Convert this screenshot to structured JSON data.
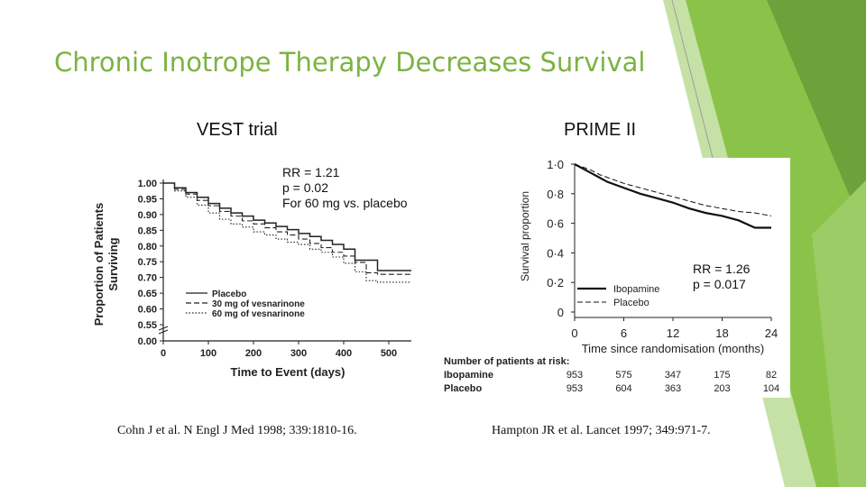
{
  "slide": {
    "title": "Chronic Inotrope Therapy Decreases Survival",
    "left_heading": "VEST trial",
    "right_heading": "PRIME II",
    "left_stats": [
      "RR = 1.21",
      "p = 0.02",
      "For 60 mg vs. placebo"
    ],
    "right_stats": [
      "RR = 1.26",
      "p = 0.017"
    ],
    "left_citation": "Cohn J et al. N Engl J Med 1998; 339:1810-16.",
    "right_citation": "Hampton JR et al. Lancet 1997; 349:971-7.",
    "accent_color": "#8bc34a"
  },
  "chart_data": [
    {
      "type": "line",
      "xlabel": "Time to Event (days)",
      "ylabel": "Proportion of Patients Surviving",
      "xlim": [
        0,
        550
      ],
      "ylim": [
        0.55,
        1.0
      ],
      "y_axis_break": true,
      "x_ticks": [
        "0",
        "100",
        "200",
        "300",
        "400",
        "500"
      ],
      "y_ticks": [
        "1.00",
        "0.95",
        "0.90",
        "0.85",
        "0.80",
        "0.75",
        "0.70",
        "0.65",
        "0.60",
        "0.55",
        "0.00"
      ],
      "legend": "bottom-left",
      "series": [
        {
          "name": "Placebo",
          "style": "solid",
          "x": [
            0,
            25,
            50,
            75,
            100,
            125,
            150,
            175,
            200,
            225,
            250,
            275,
            300,
            325,
            350,
            375,
            400,
            425,
            450,
            475,
            500,
            550
          ],
          "values": [
            1.0,
            0.985,
            0.97,
            0.955,
            0.935,
            0.92,
            0.905,
            0.895,
            0.882,
            0.873,
            0.862,
            0.852,
            0.84,
            0.83,
            0.818,
            0.805,
            0.79,
            0.755,
            0.755,
            0.722,
            0.722,
            0.722
          ]
        },
        {
          "name": "30 mg of vesnarinone",
          "style": "dashed",
          "x": [
            0,
            25,
            50,
            75,
            100,
            125,
            150,
            175,
            200,
            225,
            250,
            275,
            300,
            325,
            350,
            375,
            400,
            425,
            450,
            475,
            500,
            550
          ],
          "values": [
            1.0,
            0.98,
            0.965,
            0.945,
            0.928,
            0.91,
            0.895,
            0.88,
            0.87,
            0.858,
            0.845,
            0.835,
            0.822,
            0.808,
            0.795,
            0.78,
            0.768,
            0.748,
            0.715,
            0.71,
            0.71,
            0.71
          ]
        },
        {
          "name": "60 mg of vesnarinone",
          "style": "dotted",
          "x": [
            0,
            25,
            50,
            75,
            100,
            125,
            150,
            175,
            200,
            225,
            250,
            275,
            300,
            325,
            350,
            375,
            400,
            425,
            450,
            475,
            500,
            550
          ],
          "values": [
            1.0,
            0.975,
            0.955,
            0.93,
            0.905,
            0.885,
            0.87,
            0.86,
            0.845,
            0.835,
            0.822,
            0.812,
            0.805,
            0.79,
            0.78,
            0.765,
            0.745,
            0.718,
            0.69,
            0.685,
            0.685,
            0.685
          ]
        }
      ]
    },
    {
      "type": "line",
      "xlabel": "Time since randomisation (months)",
      "ylabel": "Survival proportion",
      "xlim": [
        0,
        24
      ],
      "ylim": [
        0,
        1.0
      ],
      "x_ticks": [
        "0",
        "6",
        "12",
        "18",
        "24"
      ],
      "y_ticks": [
        "1·0",
        "0·8",
        "0·6",
        "0·4",
        "0·2",
        "0"
      ],
      "legend": "bottom-left",
      "series": [
        {
          "name": "Ibopamine",
          "style": "solid",
          "x": [
            0,
            1,
            2,
            3,
            4,
            6,
            8,
            10,
            12,
            14,
            16,
            18,
            20,
            22,
            24
          ],
          "values": [
            1.0,
            0.97,
            0.94,
            0.91,
            0.88,
            0.84,
            0.8,
            0.77,
            0.74,
            0.7,
            0.67,
            0.65,
            0.62,
            0.57,
            0.57
          ]
        },
        {
          "name": "Placebo",
          "style": "dashed",
          "x": [
            0,
            1,
            2,
            3,
            4,
            6,
            8,
            10,
            12,
            14,
            16,
            18,
            20,
            22,
            24
          ],
          "values": [
            1.0,
            0.98,
            0.96,
            0.93,
            0.91,
            0.87,
            0.84,
            0.81,
            0.78,
            0.75,
            0.72,
            0.7,
            0.68,
            0.67,
            0.65
          ]
        }
      ],
      "risk_table": {
        "header": "Number of patients at risk:",
        "rows": [
          {
            "label": "Ibopamine",
            "values": [
              "953",
              "575",
              "347",
              "175",
              "82"
            ]
          },
          {
            "label": "Placebo",
            "values": [
              "953",
              "604",
              "363",
              "203",
              "104"
            ]
          }
        ]
      }
    }
  ]
}
